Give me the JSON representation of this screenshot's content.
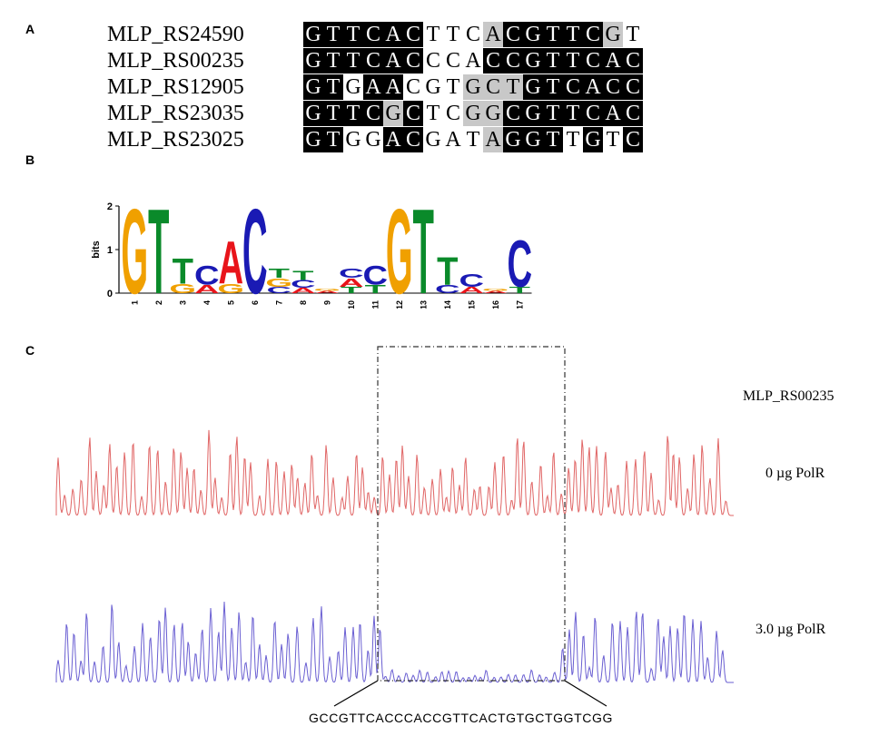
{
  "panel_labels": {
    "a": "A",
    "b": "B",
    "c": "C"
  },
  "alignment": {
    "rows": [
      {
        "name": "MLP_RS24590",
        "bases": "GTTCACTTCACGTTCGT",
        "shade": "BBBBBBWWWGBBBBBGW"
      },
      {
        "name": "MLP_RS00235",
        "bases": "GTTCACCCACCGTTCAC",
        "shade": "BBBBBBWWWBBBBBBBB"
      },
      {
        "name": "MLP_RS12905",
        "bases": "GTGAACGTGCTGTCACC",
        "shade": "BBWBBWWWGGGBBBBBB"
      },
      {
        "name": "MLP_RS23035",
        "bases": "GTTCGCTCGGCGTTCAC",
        "shade": "BBBBGBWWGGBBBBBBB"
      },
      {
        "name": "MLP_RS23025",
        "bases": "GTGGACGATAGGTTGTC",
        "shade": "BBWWBBWWWGBBBWBWB"
      }
    ],
    "shade_colors": {
      "B": "#000000",
      "G": "#c8c8c8",
      "W": "#ffffff"
    }
  },
  "logo": {
    "ylabel": "bits",
    "yticks": [
      "0",
      "1",
      "2"
    ],
    "positions": [
      "1",
      "2",
      "3",
      "4",
      "5",
      "6",
      "7",
      "8",
      "9",
      "10",
      "11",
      "12",
      "13",
      "14",
      "15",
      "16",
      "17"
    ],
    "colors": {
      "A": "#e8141a",
      "C": "#1a1ab4",
      "G": "#f0a000",
      "T": "#0a8a2a"
    },
    "columns": [
      [
        [
          "G",
          2.0
        ]
      ],
      [
        [
          "T",
          2.0
        ]
      ],
      [
        [
          "G",
          0.22
        ],
        [
          "T",
          0.6
        ]
      ],
      [
        [
          "A",
          0.2
        ],
        [
          "C",
          0.45
        ]
      ],
      [
        [
          "G",
          0.22
        ],
        [
          "A",
          1.0
        ]
      ],
      [
        [
          "C",
          2.0
        ]
      ],
      [
        [
          "C",
          0.15
        ],
        [
          "G",
          0.2
        ],
        [
          "T",
          0.22
        ]
      ],
      [
        [
          "A",
          0.12
        ],
        [
          "C",
          0.18
        ],
        [
          "T",
          0.22
        ]
      ],
      [
        [
          "A",
          0.05
        ],
        [
          "G",
          0.06
        ]
      ],
      [
        [
          "T",
          0.15
        ],
        [
          "A",
          0.2
        ],
        [
          "C",
          0.22
        ]
      ],
      [
        [
          "T",
          0.2
        ],
        [
          "C",
          0.45
        ]
      ],
      [
        [
          "G",
          2.0
        ]
      ],
      [
        [
          "T",
          2.0
        ]
      ],
      [
        [
          "C",
          0.2
        ],
        [
          "T",
          0.65
        ]
      ],
      [
        [
          "A",
          0.15
        ],
        [
          "C",
          0.3
        ]
      ],
      [
        [
          "A",
          0.05
        ],
        [
          "G",
          0.06
        ]
      ],
      [
        [
          "T",
          0.15
        ],
        [
          "C",
          1.1
        ]
      ]
    ]
  },
  "chromatogram": {
    "gene": "MLP_RS00235",
    "conditions": [
      "0 µg PolR",
      "3.0 µg PolR"
    ],
    "trace_colors": [
      "#e06565",
      "#6a5fd2"
    ],
    "boxed_sequence": "GCCGTTCACCCACCGTTCACTGTGCTGGTCGG"
  }
}
